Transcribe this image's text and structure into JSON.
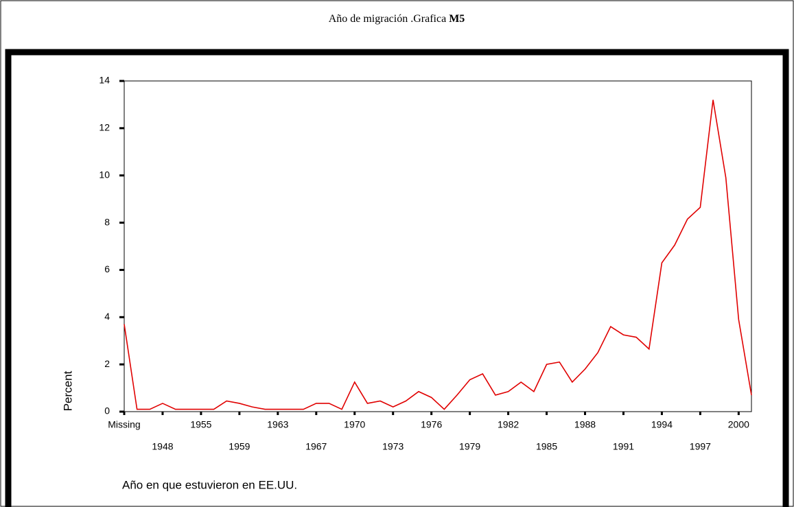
{
  "chart_data": {
    "type": "line",
    "title": "Año de migración .Grafica",
    "title_bold": "M5",
    "x_label": "Año en que estuvieron en EE.UU.",
    "y_label": "Percent",
    "categories": [
      "Missing",
      null,
      null,
      "1948",
      null,
      null,
      "1955",
      null,
      null,
      "1959",
      null,
      null,
      "1963",
      null,
      null,
      "1967",
      null,
      null,
      "1970",
      null,
      null,
      "1973",
      null,
      null,
      "1976",
      null,
      null,
      "1979",
      null,
      null,
      "1982",
      null,
      null,
      "1985",
      null,
      null,
      "1988",
      null,
      null,
      "1991",
      null,
      null,
      "1994",
      null,
      null,
      "1997",
      null,
      null,
      "2000",
      null
    ],
    "series": [
      {
        "name": "Percent",
        "color": "#e00000",
        "values": [
          3.7,
          0.1,
          0.1,
          0.35,
          0.1,
          0.1,
          0.1,
          0.1,
          0.45,
          0.35,
          0.2,
          0.1,
          0.1,
          0.1,
          0.1,
          0.35,
          0.35,
          0.1,
          1.25,
          0.35,
          0.45,
          0.2,
          0.45,
          0.85,
          0.6,
          0.1,
          0.7,
          1.35,
          1.6,
          0.7,
          0.85,
          1.25,
          0.85,
          2.0,
          2.1,
          1.25,
          1.8,
          2.5,
          3.6,
          3.25,
          3.15,
          2.65,
          6.3,
          7.05,
          8.15,
          8.65,
          13.2,
          9.9,
          3.9,
          0.7
        ]
      }
    ],
    "ylim": [
      0,
      14
    ],
    "yticks": [
      0,
      2,
      4,
      6,
      8,
      10,
      12,
      14
    ]
  }
}
